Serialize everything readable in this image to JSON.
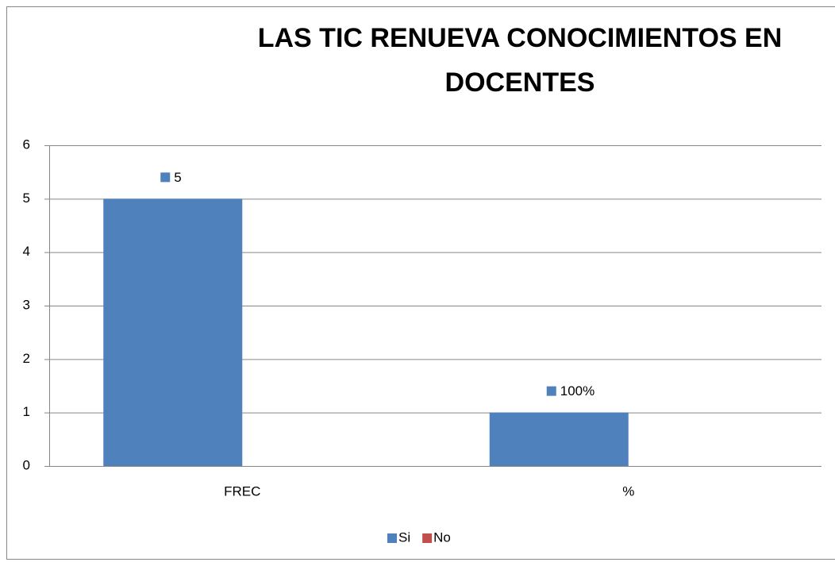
{
  "chart_data": {
    "type": "bar",
    "title": [
      "LAS  TIC RENUEVA  CONOCIMIENTOS  EN",
      "DOCENTES"
    ],
    "categories": [
      "FREC",
      "%"
    ],
    "series": [
      {
        "name": "Si",
        "color": "#4f81bd",
        "values": [
          5,
          1
        ],
        "value_labels": [
          "5",
          "100%"
        ]
      },
      {
        "name": "No",
        "color": "#c0504d",
        "values": [
          0,
          0
        ]
      }
    ],
    "ylim": [
      0,
      6
    ],
    "yticks": [
      0,
      1,
      2,
      3,
      4,
      5,
      6
    ],
    "grid": true,
    "legend": "bottom"
  }
}
